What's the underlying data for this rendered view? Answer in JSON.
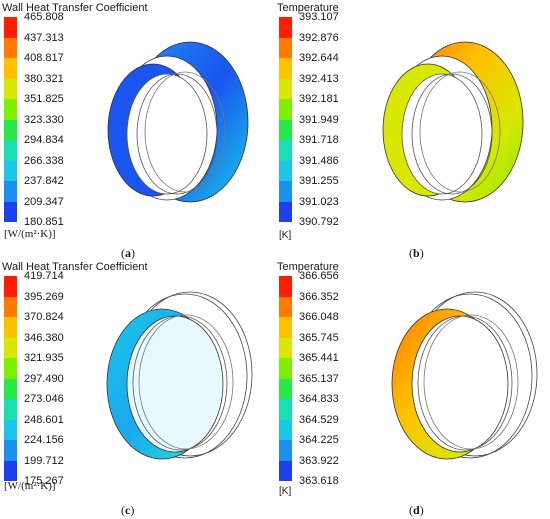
{
  "colors": [
    "#ff1e00",
    "#ff7a00",
    "#ffc000",
    "#d8e800",
    "#7cf000",
    "#28e848",
    "#19e0b0",
    "#19c8e8",
    "#1a90f0",
    "#1a40f0"
  ],
  "panels": [
    {
      "title": "Wall Heat Transfer Coefficient",
      "ticks": [
        "465.808",
        "437.313",
        "408.817",
        "380.321",
        "351.825",
        "323.330",
        "294.834",
        "266.338",
        "237.842",
        "209.347",
        "180.851"
      ],
      "unit": "[W/(m²·K)]",
      "label": "a"
    },
    {
      "title": "Temperature",
      "ticks": [
        "393.107",
        "392.876",
        "392.644",
        "392.413",
        "392.181",
        "391.949",
        "391.718",
        "391.486",
        "391.255",
        "391.023",
        "390.792"
      ],
      "unit": "[K]",
      "label": "b"
    },
    {
      "title": "Wall Heat Transfer Coefficient",
      "ticks": [
        "419.714",
        "395.269",
        "370.824",
        "346.380",
        "321.935",
        "297.490",
        "273.046",
        "248.601",
        "224.156",
        "199.712",
        "175.267"
      ],
      "unit": "[W/(m²·K)]",
      "label": "c"
    },
    {
      "title": "Temperature",
      "ticks": [
        "366.656",
        "366.352",
        "366.048",
        "365.745",
        "365.441",
        "365.137",
        "364.833",
        "364.529",
        "364.225",
        "363.922",
        "363.618"
      ],
      "unit": "[K]",
      "label": "d"
    }
  ]
}
